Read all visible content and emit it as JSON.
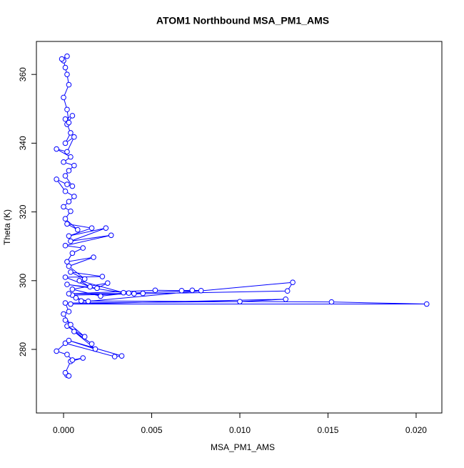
{
  "chart_data": {
    "type": "line",
    "title": "ATOM1 Northbound MSA_PM1_AMS",
    "x_label": "MSA_PM1_AMS",
    "y_label": "Theta (K)",
    "markers": "circle",
    "x": [
      0.0002,
      0.0003,
      0.0001,
      0.0004,
      0.0011,
      0.0005,
      0.0002,
      -0.0004,
      0.0001,
      0.0029,
      0.0033,
      0.0003,
      0.0018,
      0.0006,
      0.0016,
      0.0002,
      0.0012,
      0.0001,
      0.0004,
      0,
      0.0003,
      0.0001,
      0.01,
      0.0126,
      0.0004,
      0.0206,
      0.0152,
      0.001,
      0.0007,
      0.0014,
      0.013,
      0.0127,
      0.0005,
      0.0078,
      0.0073,
      0.0067,
      0.0052,
      0.0003,
      0.0045,
      0.004,
      0.0037,
      0.0021,
      0.0005,
      0.0025,
      0.0019,
      0.0002,
      0.0034,
      0.0009,
      0.0015,
      0.0001,
      0.0022,
      0.0004,
      0.0012,
      0.0003,
      0.0017,
      0.0002,
      0.0005,
      0.0011,
      0.0001,
      0.0027,
      0.0004,
      0.0024,
      0.0003,
      0.0016,
      0.0002,
      0.0008,
      0.0001,
      0.0004,
      0,
      0.0003,
      0.0006,
      0.0001,
      -0.0004,
      0.0002,
      0.0005,
      0.0001,
      0.0003,
      0.0006,
      0,
      0.0004,
      -0.0004,
      0.0002,
      0.0006,
      0.0001,
      0.0004,
      0.0002,
      0.0005,
      0.0001,
      0.0003,
      0.0002,
      0,
      0.0003,
      0.0002,
      0.0001,
      0,
      -0.0001,
      0.0002
    ],
    "series": [
      {
        "color": "#0000ff",
        "values": [
          272.5,
          272.3,
          273.2,
          276.5,
          277.5,
          276.9,
          278.5,
          279.5,
          281.8,
          277.9,
          278.1,
          282.6,
          280.1,
          285.2,
          281.6,
          286.8,
          283.7,
          288.5,
          287.2,
          290.3,
          291.0,
          293.5,
          293.9,
          294.6,
          293.2,
          293.2,
          293.8,
          294.1,
          295.0,
          294.0,
          299.5,
          297.0,
          295.8,
          297.1,
          297.2,
          297.1,
          297.2,
          296.2,
          296.3,
          296.2,
          296.4,
          295.5,
          297.5,
          299.3,
          297.8,
          298.9,
          296.5,
          300.0,
          298.2,
          301.0,
          301.2,
          302.5,
          300.5,
          304.2,
          306.8,
          305.5,
          308.0,
          309.5,
          310.2,
          313.2,
          311.5,
          315.3,
          313.0,
          315.3,
          316.5,
          314.8,
          318.0,
          320.2,
          321.5,
          323.0,
          324.5,
          326.0,
          329.5,
          328.0,
          327.5,
          330.5,
          332.0,
          333.5,
          334.5,
          336.0,
          338.3,
          337.5,
          341.8,
          340.0,
          343.0,
          345.5,
          348.0,
          347.0,
          346.0,
          349.8,
          353.3,
          357.0,
          360.0,
          362.0,
          364.0,
          364.5,
          365.3
        ]
      }
    ],
    "xlim": [
      -0.00154,
      0.02146
    ],
    "ylim": [
      261.5,
      369.6
    ],
    "xticks": [
      {
        "value": 0,
        "label": "0.000"
      },
      {
        "value": 0.005,
        "label": "0.005"
      },
      {
        "value": 0.01,
        "label": "0.010"
      },
      {
        "value": 0.015,
        "label": "0.015"
      },
      {
        "value": 0.02,
        "label": "0.020"
      }
    ],
    "yticks": [
      280,
      300,
      320,
      340,
      360
    ]
  }
}
